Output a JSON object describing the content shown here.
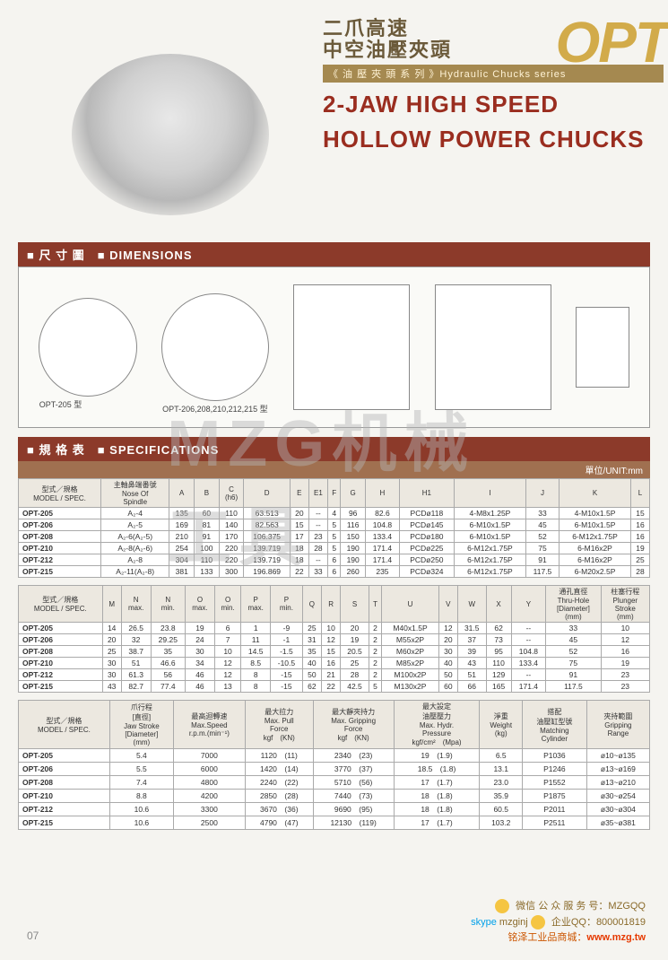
{
  "header": {
    "chinese_line1": "二爪高速",
    "chinese_line2": "中空油壓夾頭",
    "subtitle": "《 油 壓 夾 頭 系 列 》Hydraulic Chucks series",
    "brand": "OPT",
    "english_line1": "2-JAW HIGH SPEED",
    "english_line2": "HOLLOW POWER CHUCKS"
  },
  "sections": {
    "dimensions": "■ 尺 寸 圖　■ DIMENSIONS",
    "specifications": "■ 規 格 表　■ SPECIFICATIONS",
    "unit": "單位/UNIT:mm"
  },
  "diagrams": {
    "d1_label": "OPT-205 型",
    "d2_label": "OPT-206,208,210,212,215 型"
  },
  "table1": {
    "headers": [
      "型式／規格\nMODEL / SPEC.",
      "主軸鼻端番號\nNose Of\nSpindle",
      "A",
      "B",
      "C\n(h6)",
      "D",
      "E",
      "E1",
      "F",
      "G",
      "H",
      "H1",
      "I",
      "J",
      "K",
      "L"
    ],
    "rows": [
      [
        "OPT-205",
        "A₂-4",
        "135",
        "60",
        "110",
        "63.513",
        "20",
        "--",
        "4",
        "96",
        "82.6",
        "PCDø118",
        "4-M8x1.25P",
        "33",
        "4-M10x1.5P",
        "15"
      ],
      [
        "OPT-206",
        "A₂-5",
        "169",
        "81",
        "140",
        "82.563",
        "15",
        "--",
        "5",
        "116",
        "104.8",
        "PCDø145",
        "6-M10x1.5P",
        "45",
        "6-M10x1.5P",
        "16"
      ],
      [
        "OPT-208",
        "A₂-6(A₂-5)",
        "210",
        "91",
        "170",
        "106.375",
        "17",
        "23",
        "5",
        "150",
        "133.4",
        "PCDø180",
        "6-M10x1.5P",
        "52",
        "6-M12x1.75P",
        "16"
      ],
      [
        "OPT-210",
        "A₂-8(A₂-6)",
        "254",
        "100",
        "220",
        "139.719",
        "18",
        "28",
        "5",
        "190",
        "171.4",
        "PCDø225",
        "6-M12x1.75P",
        "75",
        "6-M16x2P",
        "19"
      ],
      [
        "OPT-212",
        "A₂-8",
        "304",
        "110",
        "220",
        "139.719",
        "18",
        "--",
        "6",
        "190",
        "171.4",
        "PCDø250",
        "6-M12x1.75P",
        "91",
        "6-M16x2P",
        "25"
      ],
      [
        "OPT-215",
        "A₂-11(A₂-8)",
        "381",
        "133",
        "300",
        "196.869",
        "22",
        "33",
        "6",
        "260",
        "235",
        "PCDø324",
        "6-M12x1.75P",
        "117.5",
        "6-M20x2.5P",
        "28"
      ]
    ]
  },
  "table2": {
    "headers": [
      "型式／規格\nMODEL / SPEC.",
      "M",
      "N\nmax.",
      "N\nmin.",
      "O\nmax.",
      "O\nmin.",
      "P\nmax.",
      "P\nmin.",
      "Q",
      "R",
      "S",
      "T",
      "U",
      "V",
      "W",
      "X",
      "Y",
      "通孔直徑\nThru-Hole\n[Diameter]\n(mm)",
      "柱塞行程\nPlunger\nStroke\n(mm)"
    ],
    "rows": [
      [
        "OPT-205",
        "14",
        "26.5",
        "23.8",
        "19",
        "6",
        "1",
        "-9",
        "25",
        "10",
        "20",
        "2",
        "M40x1.5P",
        "12",
        "31.5",
        "62",
        "--",
        "33",
        "10"
      ],
      [
        "OPT-206",
        "20",
        "32",
        "29.25",
        "24",
        "7",
        "11",
        "-1",
        "31",
        "12",
        "19",
        "2",
        "M55x2P",
        "20",
        "37",
        "73",
        "--",
        "45",
        "12"
      ],
      [
        "OPT-208",
        "25",
        "38.7",
        "35",
        "30",
        "10",
        "14.5",
        "-1.5",
        "35",
        "15",
        "20.5",
        "2",
        "M60x2P",
        "30",
        "39",
        "95",
        "104.8",
        "52",
        "16"
      ],
      [
        "OPT-210",
        "30",
        "51",
        "46.6",
        "34",
        "12",
        "8.5",
        "-10.5",
        "40",
        "16",
        "25",
        "2",
        "M85x2P",
        "40",
        "43",
        "110",
        "133.4",
        "75",
        "19"
      ],
      [
        "OPT-212",
        "30",
        "61.3",
        "56",
        "46",
        "12",
        "8",
        "-15",
        "50",
        "21",
        "28",
        "2",
        "M100x2P",
        "50",
        "51",
        "129",
        "--",
        "91",
        "23"
      ],
      [
        "OPT-215",
        "43",
        "82.7",
        "77.4",
        "46",
        "13",
        "8",
        "-15",
        "62",
        "22",
        "42.5",
        "5",
        "M130x2P",
        "60",
        "66",
        "165",
        "171.4",
        "117.5",
        "23"
      ]
    ]
  },
  "table3": {
    "headers": [
      "型式／規格\nMODEL / SPEC.",
      "爪行程\n[直徑]\nJaw Stroke\n[Diameter]\n(mm)",
      "最高迴轉速\nMax.Speed\nr.p.m.(min⁻¹)",
      "最大拉力\nMax. Pull\nForce\nkgf　(KN)",
      "最大靜夾持力\nMax. Gripping\nForce\nkgf　(KN)",
      "最大設定\n油壓壓力\nMax. Hydr.\nPressure\nkgf/cm²　(Mpa)",
      "淨重\nWeight\n(kg)",
      "搭配\n油壓缸型號\nMatching\nCylinder",
      "夾持範圍\nGripping\nRange"
    ],
    "rows": [
      [
        "OPT-205",
        "5.4",
        "7000",
        "1120　(11)",
        "2340　(23)",
        "19　(1.9)",
        "6.5",
        "P1036",
        "ø10~ø135"
      ],
      [
        "OPT-206",
        "5.5",
        "6000",
        "1420　(14)",
        "3770　(37)",
        "18.5　(1.8)",
        "13.1",
        "P1246",
        "ø13~ø169"
      ],
      [
        "OPT-208",
        "7.4",
        "4800",
        "2240　(22)",
        "5710　(56)",
        "17　(1.7)",
        "23.0",
        "P1552",
        "ø13~ø210"
      ],
      [
        "OPT-210",
        "8.8",
        "4200",
        "2850　(28)",
        "7440　(73)",
        "18　(1.8)",
        "35.9",
        "P1875",
        "ø30~ø254"
      ],
      [
        "OPT-212",
        "10.6",
        "3300",
        "3670　(36)",
        "9690　(95)",
        "18　(1.8)",
        "60.5",
        "P2011",
        "ø30~ø304"
      ],
      [
        "OPT-215",
        "10.6",
        "2500",
        "4790　(47)",
        "12130　(119)",
        "17　(1.7)",
        "103.2",
        "P2511",
        "ø35~ø381"
      ]
    ]
  },
  "watermark": "MZG机械工具",
  "page": "07",
  "contact": {
    "wechat": "微信 公 众 服 务 号：MZGQQ",
    "qq": "企业QQ：800001819",
    "skype": "mzginj",
    "site_label": "铭泽工业品商城：",
    "site_url": "www.mzg.tw"
  },
  "colors": {
    "header_brown": "#8c3a2a",
    "gold": "#d2ab4a",
    "title_red": "#9a2d1f",
    "bg": "#f5f4f0"
  }
}
